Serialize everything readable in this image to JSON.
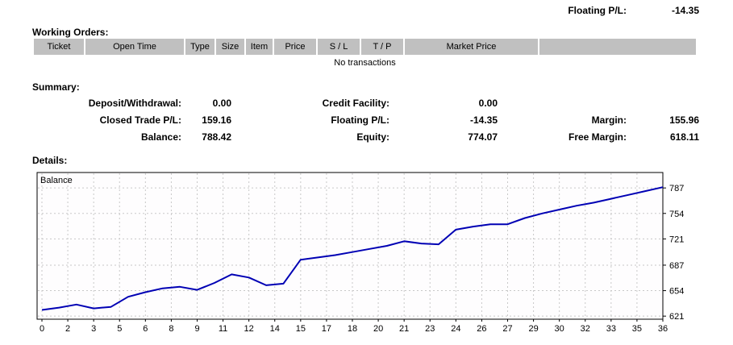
{
  "header": {
    "floating_pl_label": "Floating P/L:",
    "floating_pl_value": "-14.35"
  },
  "working_orders": {
    "title": "Working Orders:",
    "columns": [
      "Ticket",
      "Open Time",
      "Type",
      "Size",
      "Item",
      "Price",
      "S / L",
      "T / P",
      "Market Price",
      ""
    ],
    "empty_message": "No transactions"
  },
  "summary": {
    "title": "Summary:",
    "rows": [
      [
        {
          "label": "Deposit/Withdrawal:",
          "value": "0.00"
        },
        {
          "label": "Credit Facility:",
          "value": "0.00"
        },
        {
          "label": "",
          "value": ""
        }
      ],
      [
        {
          "label": "Closed Trade P/L:",
          "value": "159.16"
        },
        {
          "label": "Floating P/L:",
          "value": "-14.35"
        },
        {
          "label": "Margin:",
          "value": "155.96"
        }
      ],
      [
        {
          "label": "Balance:",
          "value": "788.42"
        },
        {
          "label": "Equity:",
          "value": "774.07"
        },
        {
          "label": "Free Margin:",
          "value": "618.11"
        }
      ]
    ]
  },
  "details": {
    "title": "Details:"
  },
  "chart_data": {
    "type": "line",
    "title": "Balance",
    "series_label": "Balance",
    "x": [
      0,
      1,
      2,
      3,
      4,
      5,
      6,
      7,
      8,
      9,
      10,
      11,
      12,
      13,
      14,
      15,
      16,
      17,
      18,
      19,
      20,
      21,
      22,
      23,
      24,
      25,
      26,
      27,
      28,
      29,
      30,
      31,
      32,
      33,
      34,
      35,
      36
    ],
    "values": [
      629,
      632,
      636,
      631,
      633,
      646,
      652,
      657,
      659,
      655,
      664,
      675,
      671,
      661,
      663,
      694,
      697,
      700,
      704,
      708,
      712,
      718,
      715,
      714,
      733,
      737,
      740,
      740,
      748,
      754,
      759,
      764,
      768,
      773,
      778,
      783,
      788
    ],
    "x_tick_labels": [
      "0",
      "2",
      "3",
      "5",
      "6",
      "8",
      "9",
      "11",
      "12",
      "14",
      "15",
      "17",
      "18",
      "20",
      "21",
      "23",
      "24",
      "26",
      "27",
      "29",
      "30",
      "32",
      "33",
      "35",
      "36"
    ],
    "y_tick_labels": [
      787,
      754,
      721,
      687,
      654,
      621
    ],
    "xlim": [
      0,
      36
    ],
    "ylim": [
      617,
      807
    ],
    "grid": true,
    "legend_position": "top-left-inside",
    "line_color": "#0000B4",
    "grid_color": "#C8C8C8",
    "border_color": "#000000",
    "plot_bg": "#FEFDFE"
  },
  "colors": {
    "table_header_bg": "#C0C0C0",
    "text": "#000000",
    "page_bg": "#FFFFFF"
  }
}
